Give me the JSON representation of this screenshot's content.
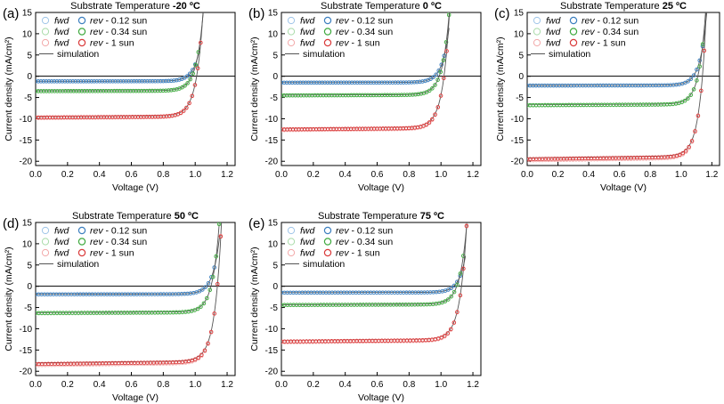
{
  "figure": {
    "title_prefix": "Substrate Temperature",
    "legend_labels": {
      "fwd": "fwd",
      "rev": "rev",
      "sun_012": " - 0.12 sun",
      "sun_034": " - 0.34 sun",
      "sun_1": " - 1 sun",
      "simulation": "simulation"
    },
    "colors": {
      "blue": "#3c7fbf",
      "green": "#3faa3f",
      "red": "#d93a3a",
      "blue_light": "#9fc5e8",
      "green_light": "#a9dba9",
      "red_light": "#f2a8a8",
      "simulation": "#555555"
    }
  },
  "chart_data": [
    {
      "type": "line",
      "panel": "(a)",
      "temperature": "-20 ºC",
      "xlabel": "Voltage (V)",
      "ylabel": "Current density (mA/cm²)",
      "xlim": [
        0,
        1.25
      ],
      "ylim": [
        -21,
        15
      ],
      "xticks": [
        "0.0",
        "0.2",
        "0.4",
        "0.6",
        "0.8",
        "1.0",
        "1.2"
      ],
      "yticks": [
        "-20",
        "-15",
        "-10",
        "-5",
        "0",
        "5",
        "10",
        "15"
      ],
      "series": [
        {
          "name": "0.12 sun",
          "color_key": "blue",
          "jsc": -1.2,
          "voc": 0.95,
          "vmax": 1.0
        },
        {
          "name": "0.34 sun",
          "color_key": "green",
          "jsc": -3.5,
          "voc": 0.98,
          "vmax": 1.02
        },
        {
          "name": "1 sun",
          "color_key": "red",
          "jsc": -9.7,
          "voc": 1.01,
          "vmax": 1.07
        }
      ]
    },
    {
      "type": "line",
      "panel": "(b)",
      "temperature": "0 ºC",
      "xlabel": "Voltage (V)",
      "ylabel": "Current density (mA/cm²)",
      "xlim": [
        0,
        1.25
      ],
      "ylim": [
        -21,
        15
      ],
      "xticks": [
        "0.0",
        "0.2",
        "0.4",
        "0.6",
        "0.8",
        "1.0",
        "1.2"
      ],
      "yticks": [
        "-20",
        "-15",
        "-10",
        "-5",
        "0",
        "5",
        "10",
        "15"
      ],
      "series": [
        {
          "name": "0.12 sun",
          "color_key": "blue",
          "jsc": -1.5,
          "voc": 0.96,
          "vmax": 1.02
        },
        {
          "name": "0.34 sun",
          "color_key": "green",
          "jsc": -4.5,
          "voc": 0.99,
          "vmax": 1.05
        },
        {
          "name": "1 sun",
          "color_key": "red",
          "jsc": -12.5,
          "voc": 1.02,
          "vmax": 1.09
        }
      ]
    },
    {
      "type": "line",
      "panel": "(c)",
      "temperature": "25 ºC",
      "xlabel": "Voltage (V)",
      "ylabel": "Current density (mA/cm²)",
      "xlim": [
        0,
        1.25
      ],
      "ylim": [
        -21,
        15
      ],
      "xticks": [
        "0.0",
        "0.2",
        "0.4",
        "0.6",
        "0.8",
        "1.0",
        "1.2"
      ],
      "yticks": [
        "-20",
        "-15",
        "-10",
        "-5",
        "0",
        "5",
        "10",
        "15"
      ],
      "series": [
        {
          "name": "0.12 sun",
          "color_key": "blue",
          "jsc": -2.2,
          "voc": 1.08,
          "vmax": 1.14
        },
        {
          "name": "0.34 sun",
          "color_key": "green",
          "jsc": -6.8,
          "voc": 1.11,
          "vmax": 1.16
        },
        {
          "name": "1 sun",
          "color_key": "red",
          "jsc": -19.5,
          "voc": 1.14,
          "vmax": 1.19
        }
      ]
    },
    {
      "type": "line",
      "panel": "(d)",
      "temperature": "50 ºC",
      "xlabel": "Voltage (V)",
      "ylabel": "Current density (mA/cm²)",
      "xlim": [
        0,
        1.25
      ],
      "ylim": [
        -21,
        15
      ],
      "xticks": [
        "0.0",
        "0.2",
        "0.4",
        "0.6",
        "0.8",
        "1.0",
        "1.2"
      ],
      "yticks": [
        "-20",
        "-15",
        "-10",
        "-5",
        "0",
        "5",
        "10",
        "15"
      ],
      "series": [
        {
          "name": "0.12 sun",
          "color_key": "blue",
          "jsc": -1.9,
          "voc": 1.07,
          "vmax": 1.12
        },
        {
          "name": "0.34 sun",
          "color_key": "green",
          "jsc": -6.3,
          "voc": 1.1,
          "vmax": 1.15
        },
        {
          "name": "1 sun",
          "color_key": "red",
          "jsc": -18.3,
          "voc": 1.14,
          "vmax": 1.2
        }
      ]
    },
    {
      "type": "line",
      "panel": "(e)",
      "temperature": "75 ºC",
      "xlabel": "Voltage (V)",
      "ylabel": "Current density (mA/cm²)",
      "xlim": [
        0,
        1.25
      ],
      "ylim": [
        -21,
        15
      ],
      "xticks": [
        "0.0",
        "0.2",
        "0.4",
        "0.6",
        "0.8",
        "1.0",
        "1.2"
      ],
      "yticks": [
        "-20",
        "-15",
        "-10",
        "-5",
        "0",
        "5",
        "10",
        "15"
      ],
      "series": [
        {
          "name": "0.12 sun",
          "color_key": "blue",
          "jsc": -1.5,
          "voc": 1.08,
          "vmax": 1.12
        },
        {
          "name": "0.34 sun",
          "color_key": "green",
          "jsc": -4.4,
          "voc": 1.1,
          "vmax": 1.14
        },
        {
          "name": "1 sun",
          "color_key": "red",
          "jsc": -13.0,
          "voc": 1.13,
          "vmax": 1.18
        }
      ]
    }
  ]
}
